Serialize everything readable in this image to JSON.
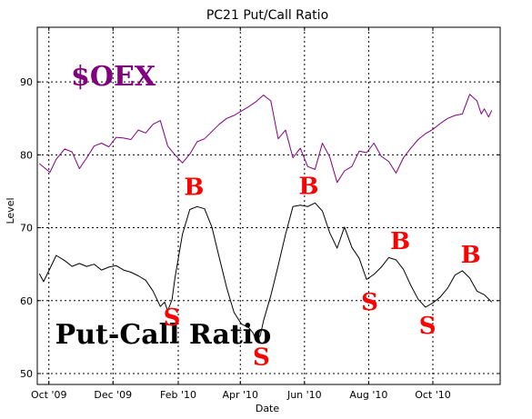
{
  "chart_data": {
    "type": "line",
    "title": "PC21 Put/Call Ratio",
    "xlabel": "Date",
    "ylabel": "Level",
    "xlim": [
      "2009-09-20",
      "2010-12-04"
    ],
    "ylim": [
      48.5,
      97.5
    ],
    "grid": true,
    "grid_style": "dotted",
    "x_ticks": [
      {
        "date": "2009-10-01",
        "label": "Oct '09"
      },
      {
        "date": "2009-12-01",
        "label": "Dec '09"
      },
      {
        "date": "2010-02-01",
        "label": "Feb '10"
      },
      {
        "date": "2010-04-01",
        "label": "Apr '10"
      },
      {
        "date": "2010-06-01",
        "label": "Jun '10"
      },
      {
        "date": "2010-08-01",
        "label": "Aug '10"
      },
      {
        "date": "2010-10-01",
        "label": "Oct '10"
      }
    ],
    "y_ticks": [
      50,
      60,
      70,
      80,
      90
    ],
    "series": [
      {
        "name": "$OEX",
        "color": "#800080",
        "points": [
          [
            "2009-09-22",
            78.8
          ],
          [
            "2009-10-02",
            77.6
          ],
          [
            "2009-10-08",
            79.4
          ],
          [
            "2009-10-16",
            80.8
          ],
          [
            "2009-10-23",
            80.4
          ],
          [
            "2009-10-30",
            78.1
          ],
          [
            "2009-11-06",
            79.6
          ],
          [
            "2009-11-13",
            81.2
          ],
          [
            "2009-11-20",
            81.6
          ],
          [
            "2009-11-27",
            81.1
          ],
          [
            "2009-12-04",
            82.4
          ],
          [
            "2009-12-11",
            82.3
          ],
          [
            "2009-12-18",
            82.1
          ],
          [
            "2009-12-25",
            83.4
          ],
          [
            "2010-01-01",
            83.0
          ],
          [
            "2010-01-08",
            84.2
          ],
          [
            "2010-01-15",
            84.7
          ],
          [
            "2010-01-22",
            81.2
          ],
          [
            "2010-01-29",
            80.0
          ],
          [
            "2010-02-05",
            78.9
          ],
          [
            "2010-02-12",
            80.1
          ],
          [
            "2010-02-19",
            81.8
          ],
          [
            "2010-02-26",
            82.2
          ],
          [
            "2010-03-05",
            83.2
          ],
          [
            "2010-03-12",
            84.2
          ],
          [
            "2010-03-19",
            85.0
          ],
          [
            "2010-03-26",
            85.4
          ],
          [
            "2010-04-02",
            86.0
          ],
          [
            "2010-04-09",
            86.6
          ],
          [
            "2010-04-16",
            87.3
          ],
          [
            "2010-04-23",
            88.2
          ],
          [
            "2010-04-30",
            87.4
          ],
          [
            "2010-05-07",
            82.2
          ],
          [
            "2010-05-14",
            83.4
          ],
          [
            "2010-05-21",
            79.6
          ],
          [
            "2010-05-28",
            80.9
          ],
          [
            "2010-06-04",
            78.4
          ],
          [
            "2010-06-11",
            78.0
          ],
          [
            "2010-06-18",
            81.6
          ],
          [
            "2010-06-25",
            79.7
          ],
          [
            "2010-07-02",
            76.2
          ],
          [
            "2010-07-09",
            77.8
          ],
          [
            "2010-07-16",
            78.4
          ],
          [
            "2010-07-23",
            80.5
          ],
          [
            "2010-07-30",
            80.3
          ],
          [
            "2010-08-06",
            81.6
          ],
          [
            "2010-08-13",
            79.8
          ],
          [
            "2010-08-20",
            79.1
          ],
          [
            "2010-08-27",
            77.5
          ],
          [
            "2010-09-03",
            79.6
          ],
          [
            "2010-09-10",
            80.9
          ],
          [
            "2010-09-17",
            82.1
          ],
          [
            "2010-09-24",
            82.9
          ],
          [
            "2010-10-01",
            83.5
          ],
          [
            "2010-10-08",
            84.3
          ],
          [
            "2010-10-15",
            85.0
          ],
          [
            "2010-10-22",
            85.4
          ],
          [
            "2010-10-29",
            85.6
          ],
          [
            "2010-11-05",
            88.3
          ],
          [
            "2010-11-12",
            87.4
          ],
          [
            "2010-11-16",
            85.6
          ],
          [
            "2010-11-19",
            86.3
          ],
          [
            "2010-11-23",
            85.2
          ],
          [
            "2010-11-26",
            86.1
          ]
        ]
      },
      {
        "name": "Put-Call Ratio",
        "color": "#000000",
        "points": [
          [
            "2009-09-22",
            63.7
          ],
          [
            "2009-09-26",
            62.6
          ],
          [
            "2009-10-02",
            64.4
          ],
          [
            "2009-10-08",
            66.2
          ],
          [
            "2009-10-16",
            65.5
          ],
          [
            "2009-10-23",
            64.7
          ],
          [
            "2009-10-30",
            65.1
          ],
          [
            "2009-11-06",
            64.7
          ],
          [
            "2009-11-13",
            65.0
          ],
          [
            "2009-11-20",
            64.2
          ],
          [
            "2009-11-27",
            64.6
          ],
          [
            "2009-12-04",
            64.8
          ],
          [
            "2009-12-11",
            64.2
          ],
          [
            "2009-12-18",
            63.9
          ],
          [
            "2009-12-25",
            63.4
          ],
          [
            "2010-01-01",
            62.8
          ],
          [
            "2010-01-08",
            61.3
          ],
          [
            "2010-01-15",
            59.2
          ],
          [
            "2010-01-19",
            59.8
          ],
          [
            "2010-01-22",
            58.6
          ],
          [
            "2010-01-26",
            60.1
          ],
          [
            "2010-01-29",
            63.2
          ],
          [
            "2010-02-05",
            69.1
          ],
          [
            "2010-02-12",
            72.5
          ],
          [
            "2010-02-19",
            72.9
          ],
          [
            "2010-02-26",
            72.6
          ],
          [
            "2010-03-05",
            70.1
          ],
          [
            "2010-03-12",
            65.9
          ],
          [
            "2010-03-19",
            61.8
          ],
          [
            "2010-03-26",
            58.4
          ],
          [
            "2010-04-02",
            56.8
          ],
          [
            "2010-04-09",
            56.3
          ],
          [
            "2010-04-13",
            55.6
          ],
          [
            "2010-04-16",
            54.6
          ],
          [
            "2010-04-20",
            55.2
          ],
          [
            "2010-04-23",
            57.2
          ],
          [
            "2010-04-30",
            60.7
          ],
          [
            "2010-05-07",
            64.8
          ],
          [
            "2010-05-14",
            69.1
          ],
          [
            "2010-05-21",
            72.9
          ],
          [
            "2010-05-28",
            73.1
          ],
          [
            "2010-06-04",
            72.9
          ],
          [
            "2010-06-11",
            73.4
          ],
          [
            "2010-06-18",
            72.3
          ],
          [
            "2010-06-25",
            69.3
          ],
          [
            "2010-07-02",
            67.2
          ],
          [
            "2010-07-09",
            70.1
          ],
          [
            "2010-07-16",
            67.3
          ],
          [
            "2010-07-23",
            65.8
          ],
          [
            "2010-07-30",
            62.9
          ],
          [
            "2010-08-06",
            63.6
          ],
          [
            "2010-08-13",
            64.6
          ],
          [
            "2010-08-20",
            65.9
          ],
          [
            "2010-08-27",
            65.6
          ],
          [
            "2010-09-03",
            64.3
          ],
          [
            "2010-09-10",
            62.1
          ],
          [
            "2010-09-17",
            60.2
          ],
          [
            "2010-09-24",
            59.1
          ],
          [
            "2010-10-01",
            59.7
          ],
          [
            "2010-10-08",
            60.5
          ],
          [
            "2010-10-15",
            61.7
          ],
          [
            "2010-10-22",
            63.5
          ],
          [
            "2010-10-29",
            64.1
          ],
          [
            "2010-11-05",
            63.1
          ],
          [
            "2010-11-12",
            61.3
          ],
          [
            "2010-11-19",
            60.8
          ],
          [
            "2010-11-26",
            59.8
          ]
        ]
      }
    ],
    "annotations": [
      {
        "text": "$OEX",
        "date": "2009-10-22",
        "value": 89.5,
        "color": "#800080",
        "size": "large"
      },
      {
        "text": "Put-Call Ratio",
        "date": "2009-10-07",
        "value": 54.1,
        "color": "#000000",
        "size": "large"
      },
      {
        "text": "B",
        "date": "2010-02-16",
        "value": 74.5,
        "color": "#ff0000",
        "size": "medium"
      },
      {
        "text": "S",
        "date": "2010-01-26",
        "value": 56.6,
        "color": "#ff0000",
        "size": "medium"
      },
      {
        "text": "S",
        "date": "2010-04-21",
        "value": 51.2,
        "color": "#ff0000",
        "size": "medium"
      },
      {
        "text": "B",
        "date": "2010-06-05",
        "value": 74.6,
        "color": "#ff0000",
        "size": "medium"
      },
      {
        "text": "S",
        "date": "2010-08-02",
        "value": 58.7,
        "color": "#ff0000",
        "size": "medium"
      },
      {
        "text": "B",
        "date": "2010-08-31",
        "value": 67.1,
        "color": "#ff0000",
        "size": "medium"
      },
      {
        "text": "S",
        "date": "2010-09-26",
        "value": 55.5,
        "color": "#ff0000",
        "size": "medium"
      },
      {
        "text": "B",
        "date": "2010-11-06",
        "value": 65.2,
        "color": "#ff0000",
        "size": "medium"
      }
    ]
  }
}
